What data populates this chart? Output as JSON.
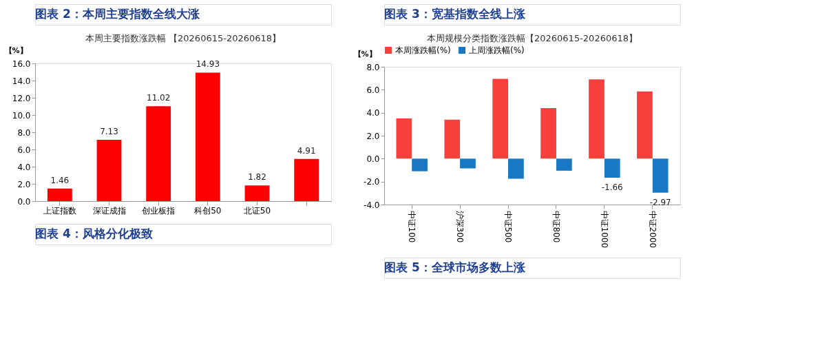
{
  "chart_data": [
    {
      "type": "bar",
      "title": "本周主要指数涨跌幅 【20260615-20260618】",
      "ylabel": "【%】",
      "annotations": [
        "图表 2：本周主要指数全线大涨",
        "图表 4：风格分化极致"
      ],
      "categories": [
        "上证指数",
        "深证成指",
        "创业板指",
        "科创50",
        "北证50",
        null
      ],
      "values": [
        1.46,
        7.13,
        11.02,
        14.93,
        1.82,
        4.91
      ],
      "color": "#ff0000",
      "data_labels": true,
      "ylim": [
        0,
        16
      ],
      "yticks": [
        {
          "value": 0,
          "label": "0.0"
        },
        {
          "value": 2,
          "label": "2.0"
        },
        {
          "value": 4,
          "label": "4.0"
        },
        {
          "value": 6,
          "label": "6.0"
        },
        {
          "value": 8,
          "label": "8.0"
        },
        {
          "value": 10,
          "label": "10.0"
        },
        {
          "value": 12,
          "label": "12.0"
        },
        {
          "value": 14,
          "label": "14.0"
        },
        {
          "value": 16,
          "label": "16.0"
        }
      ],
      "grid": false
    },
    {
      "type": "bar",
      "title": "本周规模分类指数涨跌幅【20260615-20260618】",
      "ylabel": "【%】",
      "annotations": [
        "图表 3：宽基指数全线上涨",
        "图表 5：全球市场多数上涨"
      ],
      "categories": [
        "中证100",
        "沪深300",
        "中证500",
        "中证800",
        "中证1000",
        "中证2000"
      ],
      "series": [
        {
          "name": "本周涨跌幅(%)",
          "color": "#f5403c",
          "values": [
            3.5,
            3.4,
            6.95,
            4.4,
            6.9,
            5.85
          ]
        },
        {
          "name": "上周涨跌幅(%)",
          "color": "#1878c4",
          "values": [
            -1.1,
            -0.85,
            -1.75,
            -1.05,
            -1.66,
            -2.97
          ],
          "value_labels": [
            null,
            null,
            null,
            null,
            "-1.66",
            "-2.97"
          ]
        }
      ],
      "ylim": [
        -4,
        8
      ],
      "yticks": [
        {
          "value": -4,
          "label": "-4.0"
        },
        {
          "value": -2,
          "label": "-2.0"
        },
        {
          "value": 0,
          "label": "0.0"
        },
        {
          "value": 2,
          "label": "2.0"
        },
        {
          "value": 4,
          "label": "4.0"
        },
        {
          "value": 6,
          "label": "6.0"
        },
        {
          "value": 8,
          "label": "8.0"
        }
      ],
      "grid": false,
      "legend": "top"
    }
  ]
}
